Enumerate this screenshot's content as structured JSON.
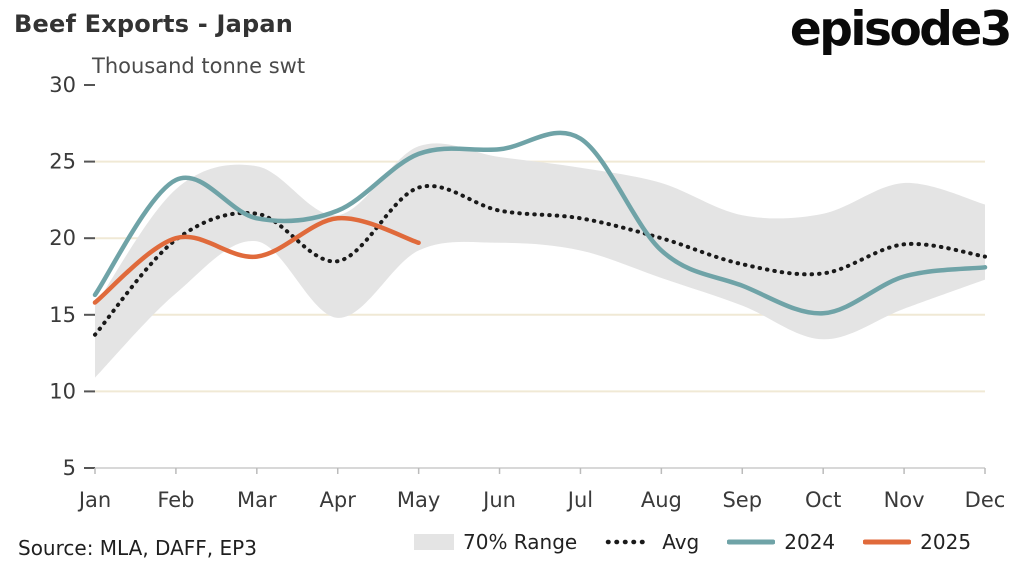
{
  "header": {
    "logo": "episode3"
  },
  "source": {
    "text": "Source: MLA, DAFF, EP3"
  },
  "chart_data": {
    "type": "line",
    "title": "Beef Exports - Japan",
    "ylabel": "Thousand tonne swt",
    "categories": [
      "Jan",
      "Feb",
      "Mar",
      "Apr",
      "May",
      "Jun",
      "Jul",
      "Aug",
      "Sep",
      "Oct",
      "Nov",
      "Dec"
    ],
    "y_ticks": [
      30,
      25,
      20,
      15,
      10,
      5
    ],
    "ylim": [
      5,
      30
    ],
    "grid": "horizontal",
    "legend_position": "bottom",
    "band": {
      "name": "70% Range",
      "upper": [
        15.6,
        23.2,
        24.7,
        21.5,
        26.0,
        25.3,
        24.6,
        23.6,
        21.5,
        21.6,
        23.6,
        22.2
      ],
      "lower": [
        10.9,
        16.4,
        19.8,
        14.8,
        19.2,
        19.7,
        19.2,
        17.4,
        15.6,
        13.4,
        15.4,
        17.3
      ]
    },
    "series": [
      {
        "name": "Avg",
        "style": "dotted",
        "values": [
          13.7,
          19.9,
          21.6,
          18.5,
          23.3,
          21.8,
          21.3,
          20.0,
          18.3,
          17.7,
          19.6,
          18.8
        ]
      },
      {
        "name": "2024",
        "style": "solid",
        "values": [
          16.3,
          23.8,
          21.3,
          21.8,
          25.5,
          25.8,
          26.5,
          19.2,
          16.9,
          15.1,
          17.5,
          18.1
        ]
      },
      {
        "name": "2025",
        "style": "solid",
        "values": [
          15.8,
          20.0,
          18.8,
          21.3,
          19.7
        ]
      }
    ],
    "colors": {
      "band": "#e4e4e4",
      "avg": "#1a1a1a",
      "s2024": "#6fa3a7",
      "s2025": "#e06a3b",
      "grid": "#f0e9d5",
      "axis": "#d8d8d8",
      "tick": "#555555"
    }
  }
}
